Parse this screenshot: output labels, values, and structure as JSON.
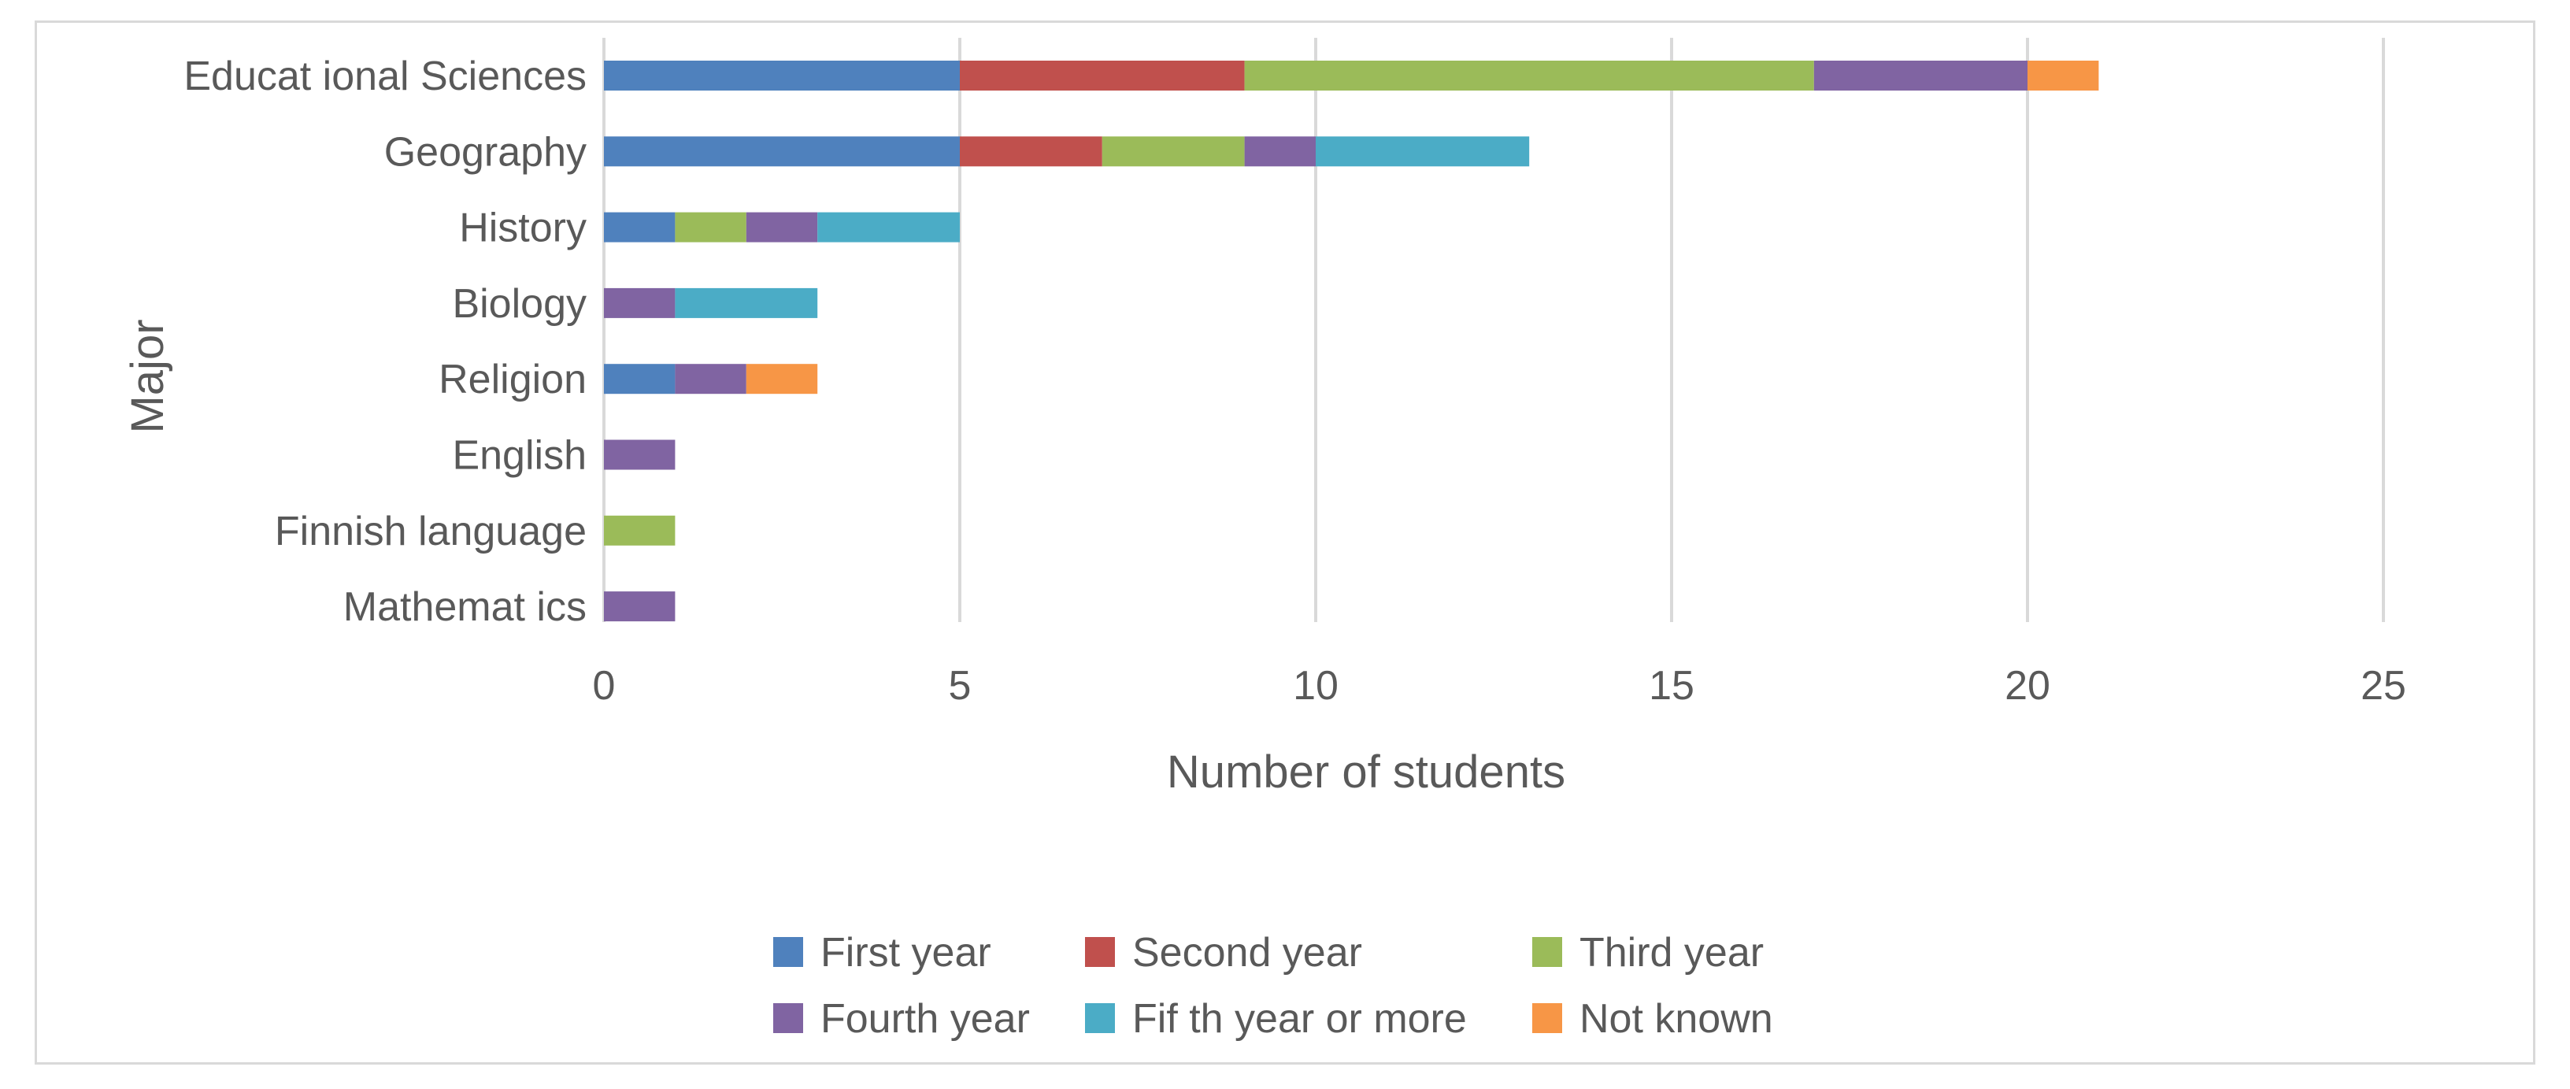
{
  "chart_data": {
    "type": "bar",
    "orientation": "horizontal",
    "stacked": true,
    "categories": [
      "Educational Sciences",
      "Geography",
      "History",
      "Biology",
      "Religion",
      "English",
      "Finnish language",
      "Mathematics"
    ],
    "category_labels": [
      "Educat ional Sciences",
      "Geography",
      "History",
      "Biology",
      "Religion",
      "English",
      "Finnish language",
      "Mathemat ics"
    ],
    "series": [
      {
        "name": "First year",
        "label": "First year",
        "color": "#4f81bd",
        "values": [
          5,
          5,
          1,
          0,
          1,
          0,
          0,
          0
        ]
      },
      {
        "name": "Second year",
        "label": "Second year",
        "color": "#c0504d",
        "values": [
          4,
          2,
          0,
          0,
          0,
          0,
          0,
          0
        ]
      },
      {
        "name": "Third year",
        "label": "Third year",
        "color": "#9bbb59",
        "values": [
          8,
          2,
          1,
          0,
          0,
          0,
          1,
          0
        ]
      },
      {
        "name": "Fourth year",
        "label": "Fourth year",
        "color": "#8064a2",
        "values": [
          3,
          1,
          1,
          1,
          1,
          1,
          0,
          1
        ]
      },
      {
        "name": "Fifth year or more",
        "label": "Fif th year or more",
        "color": "#4bacc6",
        "values": [
          0,
          3,
          2,
          2,
          0,
          0,
          0,
          0
        ]
      },
      {
        "name": "Not known",
        "label": "Not known",
        "color": "#f79646",
        "values": [
          1,
          0,
          0,
          0,
          1,
          0,
          0,
          0
        ]
      }
    ],
    "xlabel": "Number of students",
    "ylabel": "Major",
    "xlim": [
      0,
      25
    ],
    "xticks": [
      0,
      5,
      10,
      15,
      20,
      25
    ],
    "grid": "vertical",
    "legend": "bottom"
  }
}
